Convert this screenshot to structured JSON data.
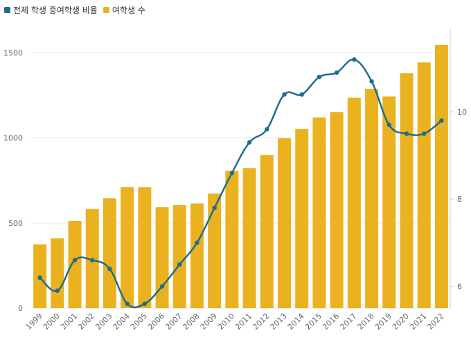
{
  "colors": {
    "bar": "#eab21e",
    "line": "#1f6d8c",
    "grid": "#e6e6e6",
    "axis_text": "#666666",
    "axis_line": "#cfcfcf"
  },
  "chart_data": {
    "type": "bar",
    "title": "",
    "xlabel": "",
    "ylabel": "",
    "legend_position": "top-left",
    "grid": true,
    "categories": [
      "1999",
      "2000",
      "2001",
      "2002",
      "2003",
      "2004",
      "2005",
      "2006",
      "2007",
      "2008",
      "2009",
      "2010",
      "2011",
      "2012",
      "2013",
      "2014",
      "2015",
      "2016",
      "2017",
      "2018",
      "2019",
      "2020",
      "2021",
      "2022"
    ],
    "series": [
      {
        "name": "여학생 수",
        "type": "bar",
        "axis": "left",
        "color": "#eab21e",
        "values": [
          375,
          410,
          512,
          583,
          645,
          711,
          710,
          593,
          605,
          615,
          673,
          807,
          823,
          900,
          998,
          1052,
          1120,
          1152,
          1236,
          1288,
          1244,
          1380,
          1444,
          1547
        ]
      },
      {
        "name": "전체 학생 중여학생 비율",
        "type": "line",
        "axis": "right",
        "color": "#1f6d8c",
        "values": [
          6.2,
          5.9,
          6.6,
          6.6,
          6.4,
          5.6,
          5.6,
          6.0,
          6.5,
          7.0,
          7.8,
          8.6,
          9.3,
          9.6,
          10.4,
          10.4,
          10.8,
          10.9,
          11.2,
          10.7,
          9.7,
          9.5,
          9.5,
          9.8
        ]
      }
    ],
    "y_left": {
      "ylim": [
        0,
        1640
      ],
      "ticks": [
        0,
        500,
        1000,
        1500
      ]
    },
    "y_right": {
      "ylim": [
        5.5,
        11.9
      ],
      "ticks": [
        6,
        8,
        10
      ]
    }
  }
}
